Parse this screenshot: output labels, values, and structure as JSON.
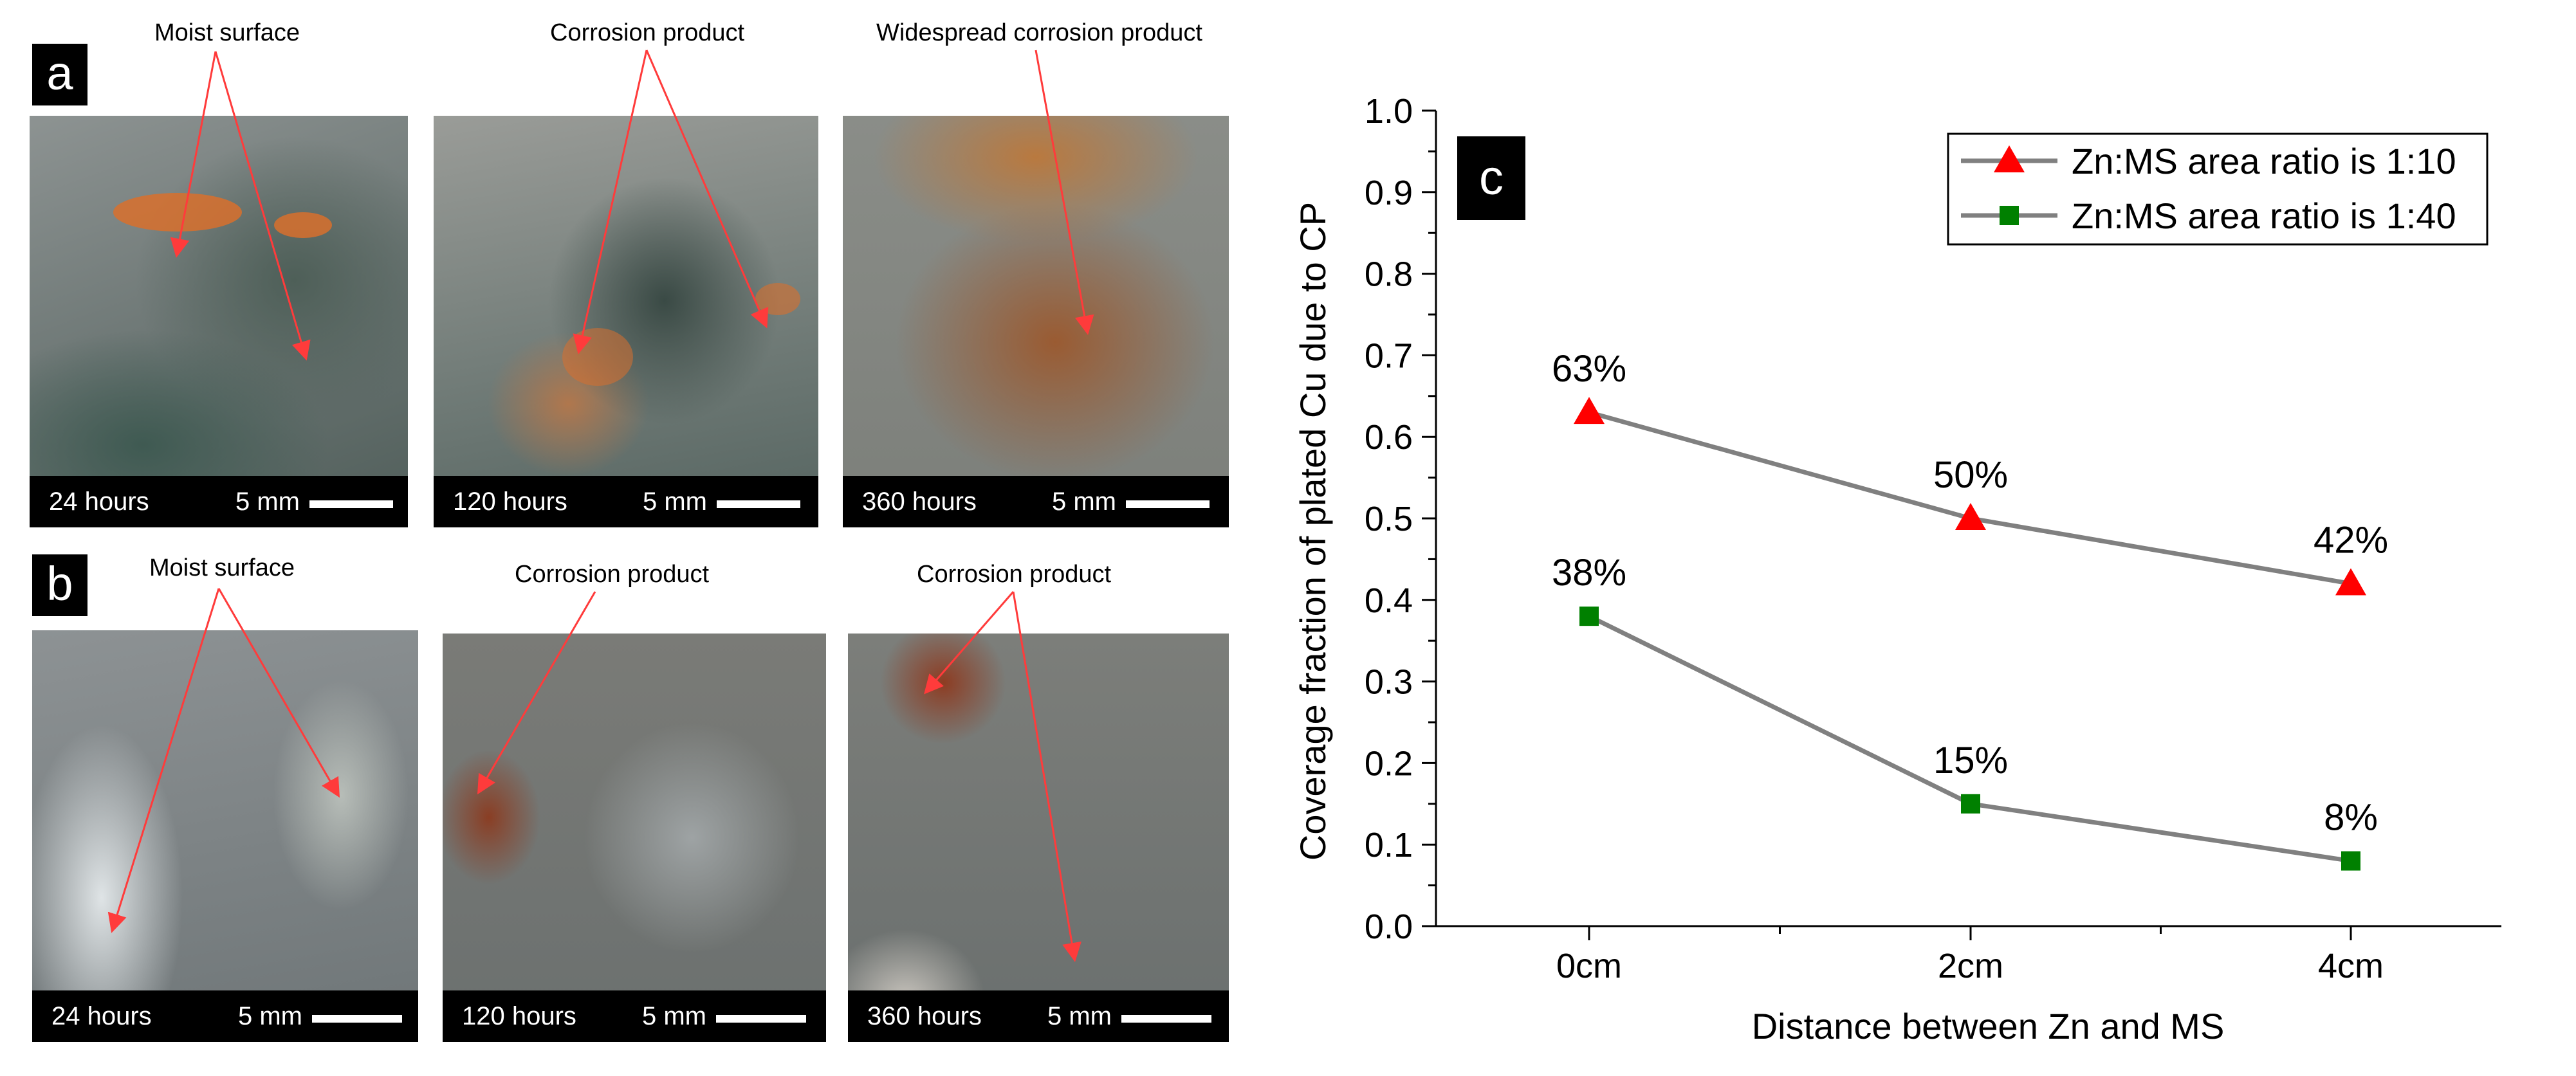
{
  "panel_a": {
    "letter": "a",
    "callouts": [
      "Moist surface",
      "Corrosion product",
      "Widespread corrosion product"
    ],
    "photos": [
      {
        "time": "24 hours",
        "scale": "5 mm"
      },
      {
        "time": "120 hours",
        "scale": "5 mm"
      },
      {
        "time": "360 hours",
        "scale": "5 mm"
      }
    ]
  },
  "panel_b": {
    "letter": "b",
    "callouts": [
      "Moist surface",
      "Corrosion product",
      "Corrosion product"
    ],
    "photos": [
      {
        "time": "24 hours",
        "scale": "5 mm"
      },
      {
        "time": "120 hours",
        "scale": "5 mm"
      },
      {
        "time": "360 hours",
        "scale": "5 mm"
      }
    ]
  },
  "colors": {
    "arrow": "#ff3b3b",
    "series_line": "#808080",
    "series_1_marker": "#ff0000",
    "series_2_marker": "#008000",
    "label_box": "#000000"
  },
  "chart_data": {
    "type": "line",
    "panel_letter": "c",
    "xlabel": "Distance between Zn and MS",
    "ylabel": "Coverage fraction of plated Cu due to CP",
    "categories": [
      "0cm",
      "2cm",
      "4cm"
    ],
    "ylim": [
      0.0,
      1.0
    ],
    "yticks": [
      "0.0",
      "0.1",
      "0.2",
      "0.3",
      "0.4",
      "0.5",
      "0.6",
      "0.7",
      "0.8",
      "0.9",
      "1.0"
    ],
    "grid": false,
    "legend_position": "top-right",
    "series": [
      {
        "name": "Zn:MS area ratio is 1:10",
        "marker": "triangle",
        "values": [
          0.63,
          0.5,
          0.42
        ],
        "labels": [
          "63%",
          "50%",
          "42%"
        ]
      },
      {
        "name": "Zn:MS area ratio is 1:40",
        "marker": "square",
        "values": [
          0.38,
          0.15,
          0.08
        ],
        "labels": [
          "38%",
          "15%",
          "8%"
        ]
      }
    ]
  }
}
